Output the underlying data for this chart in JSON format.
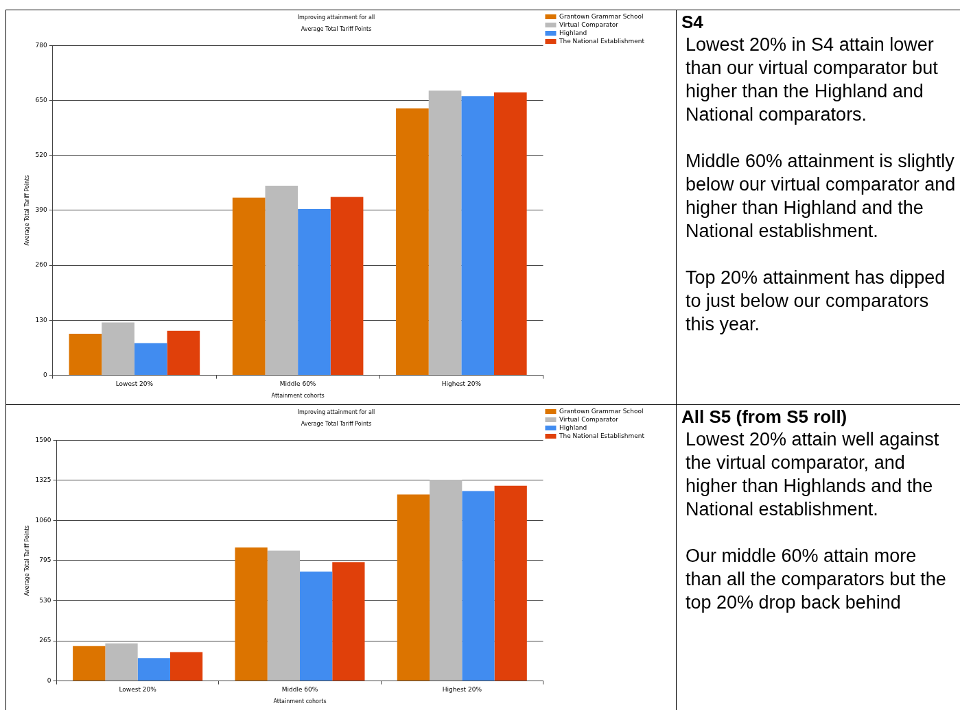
{
  "chart_data": [
    {
      "type": "bar",
      "title": "Improving attainment for all",
      "subtitle": "Average Total Tariff Points",
      "xlabel": "Attainment cohorts",
      "ylabel": "Average Total Tariff Points",
      "categories": [
        "Lowest 20%",
        "Middle 60%",
        "Highest 20%"
      ],
      "series": [
        {
          "name": "Grantown Grammar School",
          "color": "#dc7400",
          "values": [
            98,
            420,
            631
          ]
        },
        {
          "name": "Virtual Comparator",
          "color": "#bbbbbb",
          "values": [
            125,
            448,
            673
          ]
        },
        {
          "name": "Highland",
          "color": "#418cf0",
          "values": [
            76,
            393,
            660
          ]
        },
        {
          "name": "The National Establishment",
          "color": "#e0400a",
          "values": [
            105,
            422,
            669
          ]
        }
      ],
      "ylim": [
        0,
        780
      ],
      "yticks": [
        0,
        130,
        260,
        390,
        520,
        650,
        780
      ],
      "grid": "y",
      "legend": "right"
    },
    {
      "type": "other",
      "title": "S4",
      "annotations": [
        "Lowest 20% in S4 attain lower than our virtual comparator but higher than the Highland and National comparators.",
        "Middle 60% attainment is slightly below our virtual comparator and higher than Highland and the National establishment.",
        "Top 20% attainment has dipped to just below our comparators this year."
      ]
    },
    {
      "type": "bar",
      "title": "Improving attainment for all",
      "subtitle": "Average Total Tariff Points",
      "xlabel": "Attainment cohorts",
      "ylabel": "Average Total Tariff Points",
      "categories": [
        "Lowest 20%",
        "Middle 60%",
        "Highest 20%"
      ],
      "series": [
        {
          "name": "Grantown Grammar School",
          "color": "#dc7400",
          "values": [
            230,
            882,
            1231
          ]
        },
        {
          "name": "Virtual Comparator",
          "color": "#bbbbbb",
          "values": [
            248,
            860,
            1329
          ]
        },
        {
          "name": "Highland",
          "color": "#418cf0",
          "values": [
            151,
            722,
            1254
          ]
        },
        {
          "name": "The National Establishment",
          "color": "#e0400a",
          "values": [
            190,
            784,
            1289
          ]
        }
      ],
      "ylim": [
        0,
        1590
      ],
      "yticks": [
        0,
        265,
        530,
        795,
        1060,
        1325,
        1590
      ],
      "grid": "y",
      "legend": "right"
    },
    {
      "type": "other",
      "title": "All S5 (from S5 roll)",
      "annotations": [
        "Lowest 20% attain well against the virtual comparator, and higher than Highlands and the National establishment.",
        "Our middle 60% attain more than all the comparators but the top 20% drop back behind"
      ]
    }
  ]
}
